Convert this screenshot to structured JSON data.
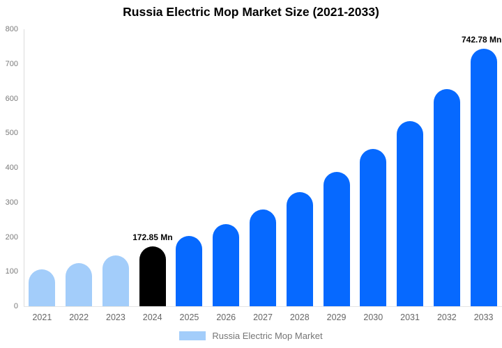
{
  "title": "Russia Electric Mop Market Size (2021-2033)",
  "legend": {
    "label": "Russia Electric Mop Market",
    "swatch_color": "#a3cdfa"
  },
  "colors": {
    "bar_light_blue": "#a3cdfa",
    "bar_black_highlight": "#000000",
    "bar_primary_blue": "#0669ff",
    "axis_line": "#dcdcdc",
    "baseline": "#e4e4e4",
    "ytick_text": "#7a7a7a",
    "xtick_text": "#666666",
    "title_text": "#000000",
    "data_label_text": "#000000",
    "legend_text": "#757575",
    "background": "#ffffff"
  },
  "chart_data": {
    "type": "bar",
    "title": "Russia Electric Mop Market Size (2021-2033)",
    "xlabel": "",
    "ylabel": "",
    "categories": [
      "2021",
      "2022",
      "2023",
      "2024",
      "2025",
      "2026",
      "2027",
      "2028",
      "2029",
      "2030",
      "2031",
      "2032",
      "2033"
    ],
    "values": [
      106,
      125,
      146,
      172.85,
      203,
      238,
      280,
      329,
      388,
      455,
      534,
      628,
      742.78
    ],
    "series_name": "Russia Electric Mop Market",
    "bar_colors": [
      "light",
      "light",
      "light",
      "highlight",
      "primary",
      "primary",
      "primary",
      "primary",
      "primary",
      "primary",
      "primary",
      "primary",
      "primary"
    ],
    "color_map": {
      "light": "#a3cdfa",
      "highlight": "#000000",
      "primary": "#0669ff"
    },
    "data_labels": [
      {
        "category": "2024",
        "text": "172.85 Mn"
      },
      {
        "category": "2033",
        "text": "742.78 Mn"
      }
    ],
    "ylim": [
      0,
      800
    ],
    "yticks": [
      0,
      100,
      200,
      300,
      400,
      500,
      600,
      700,
      800
    ],
    "grid": false,
    "rounded_bar_tops": true,
    "legend_position": "bottom"
  }
}
